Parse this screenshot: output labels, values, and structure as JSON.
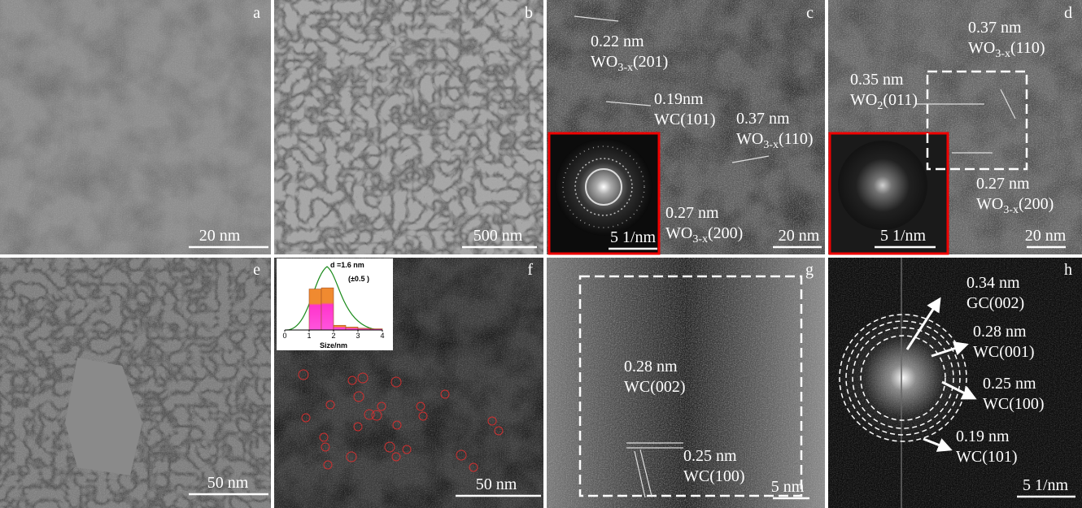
{
  "panels": [
    {
      "letter": "a",
      "scale": "20 nm"
    },
    {
      "letter": "b",
      "scale": "500 nm"
    },
    {
      "letter": "c",
      "scale": "20 nm",
      "inset_scale": "5 1/nm",
      "annotations": [
        {
          "spacing": "0.22 nm",
          "label": [
            "WO",
            "3-x",
            "(201)"
          ]
        },
        {
          "spacing": "0.19nm",
          "label": [
            "WC(101)"
          ]
        },
        {
          "spacing": "0.37 nm",
          "label": [
            "WO",
            "3-x",
            "(110)"
          ]
        },
        {
          "spacing": "0.27 nm",
          "label": [
            "WO",
            "3-x",
            "(200)"
          ]
        }
      ]
    },
    {
      "letter": "d",
      "scale": "20 nm",
      "inset_scale": "5 1/nm",
      "annotations": [
        {
          "spacing": "0.37 nm",
          "label": [
            "WO",
            "3-x",
            "(110)"
          ]
        },
        {
          "spacing": "0.35 nm",
          "label": [
            "WO",
            "2",
            "(011)"
          ]
        },
        {
          "spacing": "0.27 nm",
          "label": [
            "WO",
            "3-x",
            "(200)"
          ]
        }
      ]
    },
    {
      "letter": "e",
      "scale": "50 nm"
    },
    {
      "letter": "f",
      "scale": "50 nm",
      "histogram": {
        "mean": "d =1.6 nm",
        "sd": "(±0.5 )",
        "xlabel": "Size/nm",
        "xlim": [
          0,
          4
        ],
        "xticks": [
          0,
          1,
          2,
          3,
          4
        ],
        "ylim": [
          0,
          100
        ],
        "bins": [
          1,
          1.5,
          2,
          2.5,
          3,
          3.5,
          4
        ],
        "counts": [
          70,
          72,
          8,
          5,
          3,
          2
        ]
      }
    },
    {
      "letter": "g",
      "scale": "5 nm",
      "annotations": [
        {
          "spacing": "0.28 nm",
          "label": [
            "WC(002)"
          ]
        },
        {
          "spacing": "0.25 nm",
          "label": [
            "WC(100)"
          ]
        }
      ]
    },
    {
      "letter": "h",
      "scale": "5 1/nm",
      "annotations": [
        {
          "spacing": "0.34 nm",
          "label": [
            "GC(002)"
          ]
        },
        {
          "spacing": "0.28 nm",
          "label": [
            "WC(001)"
          ]
        },
        {
          "spacing": "0.25 nm",
          "label": [
            "WC(100)"
          ]
        },
        {
          "spacing": "0.19 nm",
          "label": [
            "WC(101)"
          ]
        }
      ]
    }
  ]
}
